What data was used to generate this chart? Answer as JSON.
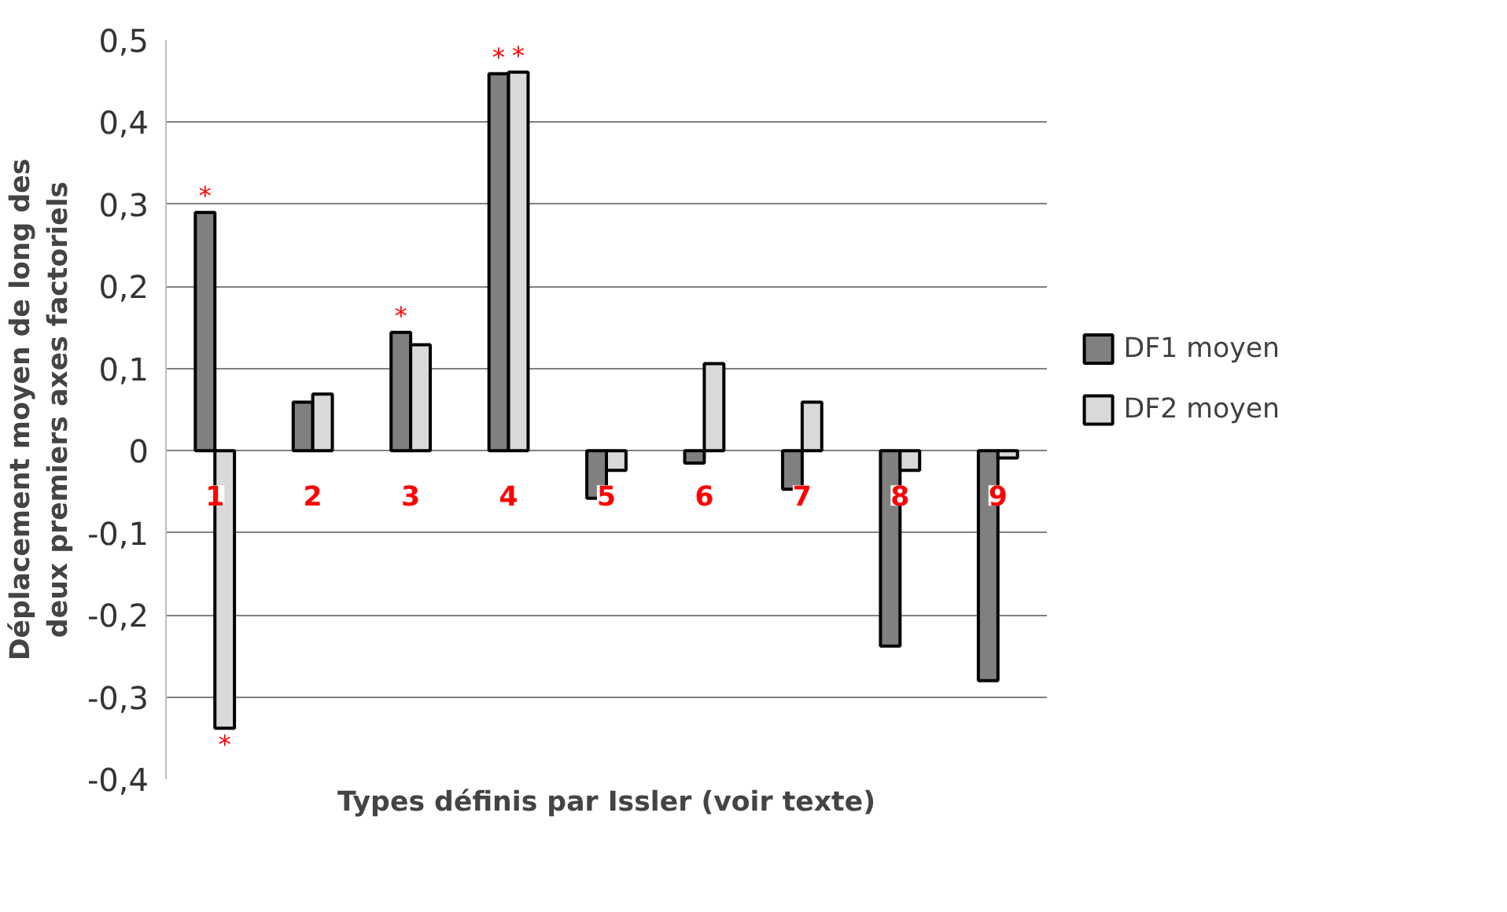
{
  "chart_data": {
    "type": "bar",
    "xlabel": "Types définis par Issler (voir texte)",
    "ylabel": "Déplacement moyen de long des deux premiers axes factoriels",
    "categories": [
      "1",
      "2",
      "3",
      "4",
      "5",
      "6",
      "7",
      "8",
      "9"
    ],
    "series": [
      {
        "name": "DF1 moyen",
        "color": "#808080",
        "values": [
          0.29,
          0.059,
          0.144,
          0.459,
          -0.058,
          -0.015,
          -0.047,
          -0.238,
          -0.28
        ]
      },
      {
        "name": "DF2 moyen",
        "color": "#d9d9d9",
        "values": [
          -0.338,
          0.069,
          0.129,
          0.461,
          -0.024,
          0.106,
          0.059,
          -0.024,
          -0.009
        ]
      }
    ],
    "ylim": [
      -0.4,
      0.5
    ],
    "yticks": [
      {
        "value": -0.4,
        "label": "-0,4"
      },
      {
        "value": -0.3,
        "label": "-0,3"
      },
      {
        "value": -0.2,
        "label": "-0,2"
      },
      {
        "value": -0.1,
        "label": "-0,1"
      },
      0,
      {
        "value": 0.1,
        "label": "0,1"
      },
      {
        "value": 0.2,
        "label": "0,2"
      },
      {
        "value": 0.3,
        "label": "0,3"
      },
      {
        "value": 0.4,
        "label": "0,4"
      },
      {
        "value": 0.5,
        "label": "0,5"
      }
    ],
    "grid": "y",
    "legend": "right",
    "annotations": [
      {
        "text": "*",
        "x": "1",
        "y": 0.29
      },
      {
        "text": "*",
        "x": "1",
        "y": -0.338
      },
      {
        "text": "*",
        "x": "3",
        "y": 0.144
      },
      {
        "text": "*",
        "x": "4",
        "y": 0.459
      },
      {
        "text": "*",
        "x": "4",
        "y": 0.461
      }
    ]
  }
}
